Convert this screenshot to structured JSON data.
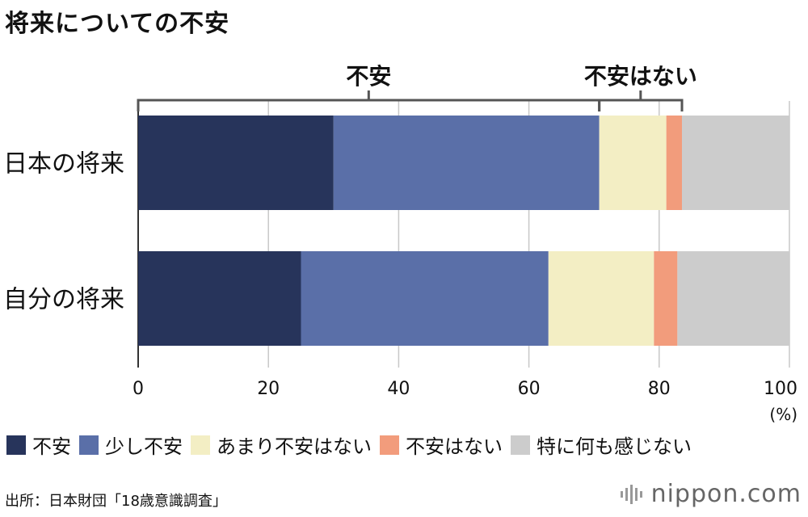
{
  "page": {
    "title": "将来についての不安"
  },
  "chart_data": {
    "type": "bar",
    "orientation": "horizontal",
    "stacked": true,
    "title": "将来についての不安",
    "categories": [
      "日本の将来",
      "自分の将来"
    ],
    "series": [
      {
        "name": "不安",
        "color": "#27345b",
        "values": [
          30.0,
          25.0
        ]
      },
      {
        "name": "少し不安",
        "color": "#5a6fa8",
        "values": [
          40.8,
          38.0
        ]
      },
      {
        "name": "あまり不安はない",
        "color": "#f3eec4",
        "values": [
          10.3,
          16.2
        ]
      },
      {
        "name": "不安はない",
        "color": "#f29c7c",
        "values": [
          2.4,
          3.6
        ]
      },
      {
        "name": "特に何も感じない",
        "color": "#cccccc",
        "values": [
          16.5,
          17.2
        ]
      }
    ],
    "xlim": [
      0,
      100
    ],
    "xticks": [
      "0",
      "20",
      "40",
      "60",
      "80",
      "100"
    ],
    "xunit": "(%)",
    "grid": true,
    "legend": "bottom",
    "brackets": [
      {
        "label": "不安",
        "from": 0,
        "to": 70.8
      },
      {
        "label": "不安はない",
        "from": 70.8,
        "to": 83.5
      }
    ]
  },
  "source": "出所：日本財団「18歳意識調査」",
  "logo": {
    "text": "nippon.com"
  }
}
